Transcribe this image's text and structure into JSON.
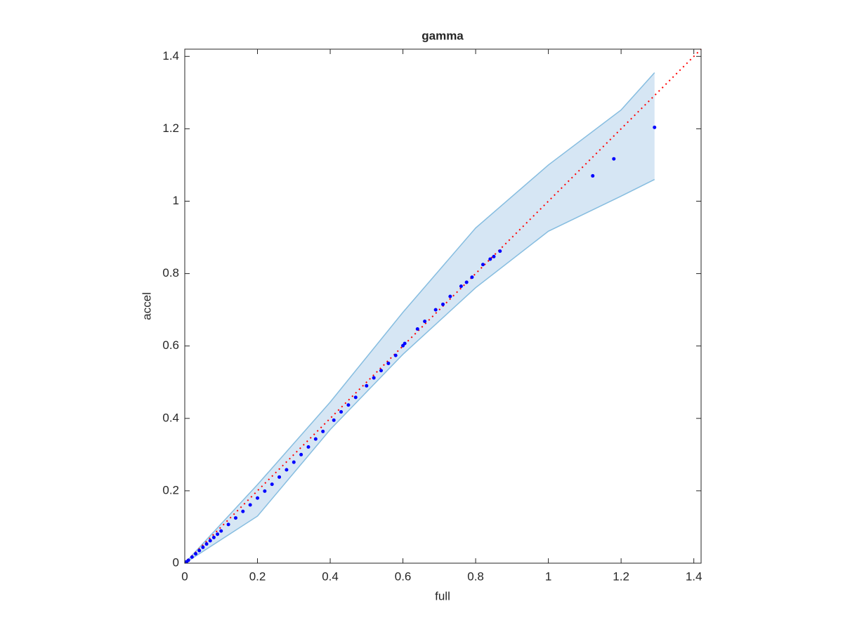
{
  "chart_data": {
    "type": "scatter",
    "title": "gamma",
    "xlabel": "full",
    "ylabel": "accel",
    "xlim": [
      0,
      1.42
    ],
    "ylim": [
      0,
      1.42
    ],
    "xticks": [
      0,
      0.2,
      0.4,
      0.6,
      0.8,
      1,
      1.2,
      1.4
    ],
    "yticks": [
      0,
      0.2,
      0.4,
      0.6,
      0.8,
      1,
      1.2,
      1.4
    ],
    "band": {
      "color": "#d6e6f4",
      "edge_color": "#86bde0",
      "x": [
        0,
        0.2,
        0.4,
        0.6,
        0.8,
        1.0,
        1.2,
        1.292
      ],
      "lower": [
        0,
        0.13,
        0.369,
        0.577,
        0.761,
        0.917,
        1.014,
        1.06
      ],
      "upper": [
        0,
        0.217,
        0.445,
        0.693,
        0.926,
        1.1,
        1.252,
        1.355
      ]
    },
    "reference_line": {
      "color": "#ff0000",
      "x": [
        0,
        1.42
      ],
      "y": [
        0,
        1.42
      ]
    },
    "points": {
      "color": "#0000ff",
      "x": [
        0.005,
        0.01,
        0.02,
        0.03,
        0.04,
        0.05,
        0.06,
        0.07,
        0.08,
        0.09,
        0.1,
        0.12,
        0.14,
        0.16,
        0.18,
        0.2,
        0.22,
        0.24,
        0.26,
        0.28,
        0.3,
        0.32,
        0.34,
        0.36,
        0.38,
        0.41,
        0.43,
        0.45,
        0.47,
        0.5,
        0.52,
        0.54,
        0.56,
        0.58,
        0.6,
        0.605,
        0.64,
        0.66,
        0.69,
        0.71,
        0.73,
        0.76,
        0.775,
        0.79,
        0.82,
        0.84,
        0.85,
        0.867,
        1.122,
        1.18,
        1.292
      ],
      "y": [
        0.004,
        0.008,
        0.017,
        0.026,
        0.035,
        0.044,
        0.053,
        0.062,
        0.071,
        0.08,
        0.089,
        0.107,
        0.125,
        0.143,
        0.161,
        0.18,
        0.199,
        0.218,
        0.238,
        0.258,
        0.279,
        0.3,
        0.321,
        0.343,
        0.364,
        0.395,
        0.418,
        0.437,
        0.458,
        0.49,
        0.512,
        0.532,
        0.552,
        0.574,
        0.601,
        0.607,
        0.647,
        0.668,
        0.7,
        0.715,
        0.737,
        0.765,
        0.776,
        0.79,
        0.825,
        0.84,
        0.847,
        0.862,
        1.07,
        1.117,
        1.204
      ]
    }
  }
}
